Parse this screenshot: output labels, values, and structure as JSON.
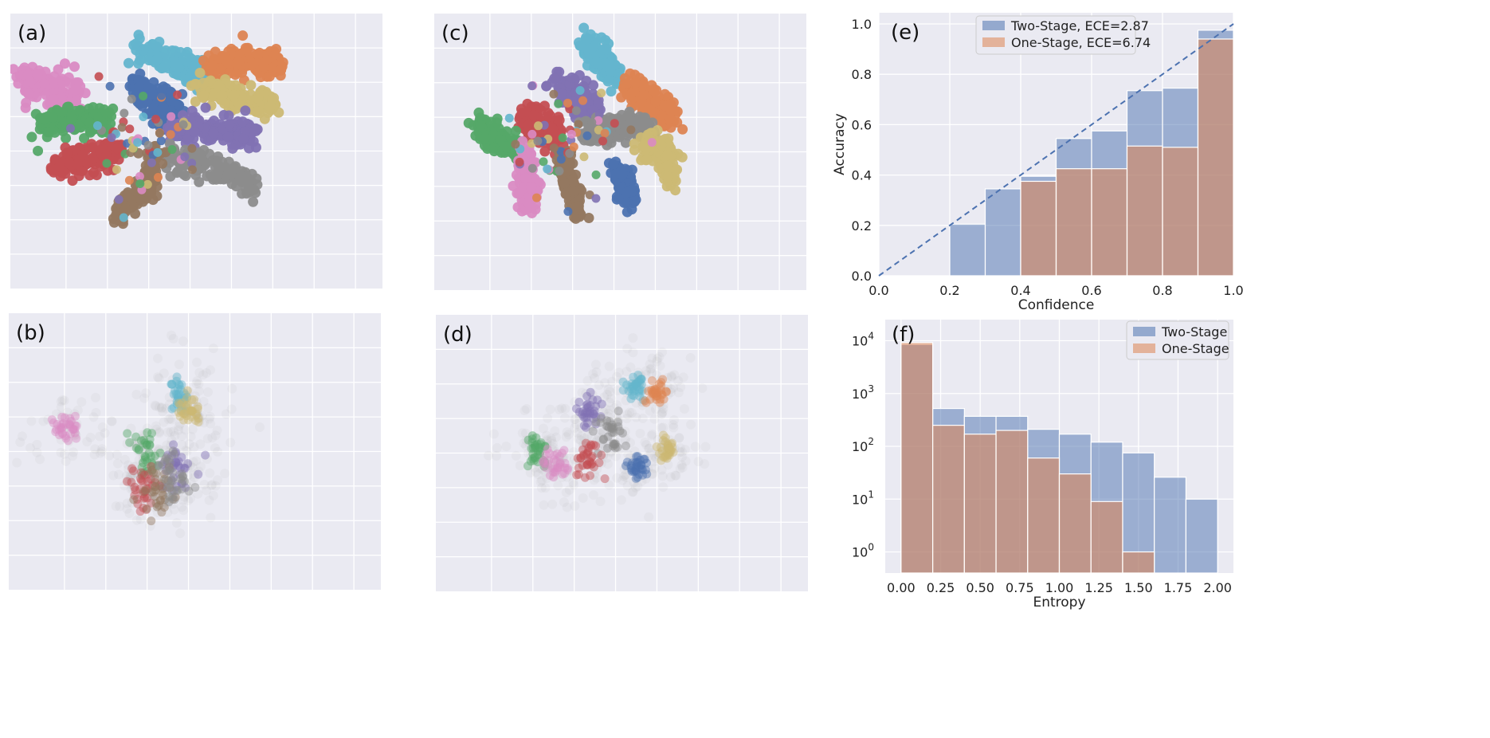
{
  "colors": {
    "blue": "#4c72b0",
    "orange": "#dd8452",
    "green": "#55a868",
    "red": "#c44e52",
    "purple": "#8172b3",
    "brown": "#937860",
    "pink": "#da8bc3",
    "gray": "#8c8c8c",
    "olive": "#ccb974",
    "cyan": "#64b5cd",
    "background": "#eaeaf2",
    "grid": "#ffffff"
  },
  "chart_data": [
    {
      "id": "a",
      "panel_label": "(a)",
      "type": "scatter",
      "description_clusters": [
        {
          "color": "cyan",
          "path": [
            [
              -0.7,
              0.92
            ],
            [
              -0.2,
              0.75
            ],
            [
              0.1,
              0.65
            ]
          ],
          "spread": 0.05
        },
        {
          "color": "orange",
          "path": [
            [
              0.15,
              0.72
            ],
            [
              0.55,
              0.78
            ],
            [
              0.95,
              0.75
            ]
          ],
          "spread": 0.045
        },
        {
          "color": "pink",
          "path": [
            [
              -1.95,
              0.62
            ],
            [
              -1.7,
              0.55
            ],
            [
              -1.35,
              0.48
            ]
          ],
          "spread": 0.06
        },
        {
          "color": "blue",
          "path": [
            [
              -0.7,
              0.55
            ],
            [
              -0.45,
              0.45
            ],
            [
              -0.25,
              0.35
            ]
          ],
          "spread": 0.06
        },
        {
          "color": "olive",
          "path": [
            [
              0.0,
              0.55
            ],
            [
              0.45,
              0.45
            ],
            [
              0.85,
              0.4
            ]
          ],
          "spread": 0.045
        },
        {
          "color": "green",
          "path": [
            [
              -1.75,
              0.22
            ],
            [
              -1.35,
              0.26
            ],
            [
              -0.95,
              0.3
            ]
          ],
          "spread": 0.045
        },
        {
          "color": "purple",
          "path": [
            [
              -0.3,
              0.2
            ],
            [
              0.15,
              0.18
            ],
            [
              0.65,
              0.15
            ]
          ],
          "spread": 0.045
        },
        {
          "color": "red",
          "path": [
            [
              -1.6,
              -0.15
            ],
            [
              -1.2,
              -0.08
            ],
            [
              -0.85,
              0.0
            ]
          ],
          "spread": 0.045
        },
        {
          "color": "gray",
          "path": [
            [
              -0.35,
              -0.05
            ],
            [
              0.2,
              -0.15
            ],
            [
              0.65,
              -0.3
            ]
          ],
          "spread": 0.045
        },
        {
          "color": "brown",
          "path": [
            [
              -0.45,
              0.0
            ],
            [
              -0.55,
              -0.3
            ],
            [
              -0.9,
              -0.55
            ]
          ],
          "spread": 0.045
        }
      ]
    },
    {
      "id": "b",
      "panel_label": "(b)",
      "type": "scatter",
      "description_clusters": [
        {
          "color": "pink",
          "path": [
            [
              -1.6,
              0.2
            ],
            [
              -1.3,
              0.22
            ]
          ],
          "spread": 0.04
        },
        {
          "color": "cyan",
          "path": [
            [
              -0.2,
              0.55
            ],
            [
              -0.15,
              0.4
            ]
          ],
          "spread": 0.05
        },
        {
          "color": "olive",
          "path": [
            [
              -0.1,
              0.35
            ],
            [
              0.0,
              0.3
            ]
          ],
          "spread": 0.06
        },
        {
          "color": "green",
          "path": [
            [
              -0.6,
              0.05
            ],
            [
              -0.5,
              -0.05
            ]
          ],
          "spread": 0.07
        },
        {
          "color": "purple",
          "path": [
            [
              -0.25,
              -0.1
            ],
            [
              -0.15,
              -0.2
            ]
          ],
          "spread": 0.08
        },
        {
          "color": "red",
          "path": [
            [
              -0.6,
              -0.25
            ],
            [
              -0.55,
              -0.35
            ]
          ],
          "spread": 0.08
        },
        {
          "color": "brown",
          "path": [
            [
              -0.45,
              -0.3
            ],
            [
              -0.35,
              -0.4
            ]
          ],
          "spread": 0.08
        },
        {
          "color": "gray",
          "path": [
            [
              -0.3,
              -0.15
            ],
            [
              -0.2,
              -0.3
            ]
          ],
          "spread": 0.08
        }
      ]
    },
    {
      "id": "c",
      "panel_label": "(c)",
      "type": "scatter",
      "description_clusters": [
        {
          "color": "cyan",
          "path": [
            [
              -0.4,
              0.95
            ],
            [
              -0.2,
              0.8
            ],
            [
              -0.05,
              0.65
            ]
          ],
          "spread": 0.045
        },
        {
          "color": "orange",
          "path": [
            [
              0.05,
              0.55
            ],
            [
              0.35,
              0.45
            ],
            [
              0.6,
              0.3
            ]
          ],
          "spread": 0.045
        },
        {
          "color": "purple",
          "path": [
            [
              -0.7,
              0.55
            ],
            [
              -0.45,
              0.45
            ],
            [
              -0.3,
              0.35
            ]
          ],
          "spread": 0.05
        },
        {
          "color": "red",
          "path": [
            [
              -1.1,
              0.3
            ],
            [
              -0.9,
              0.22
            ],
            [
              -0.7,
              0.15
            ]
          ],
          "spread": 0.05
        },
        {
          "color": "gray",
          "path": [
            [
              -0.45,
              0.18
            ],
            [
              0.0,
              0.2
            ],
            [
              0.35,
              0.22
            ]
          ],
          "spread": 0.04
        },
        {
          "color": "green",
          "path": [
            [
              -1.6,
              0.2
            ],
            [
              -1.35,
              0.1
            ],
            [
              -1.1,
              0.05
            ]
          ],
          "spread": 0.045
        },
        {
          "color": "olive",
          "path": [
            [
              0.25,
              0.05
            ],
            [
              0.5,
              0.0
            ],
            [
              0.6,
              -0.2
            ]
          ],
          "spread": 0.05
        },
        {
          "color": "pink",
          "path": [
            [
              -1.05,
              -0.05
            ],
            [
              -1.05,
              -0.25
            ],
            [
              -1.05,
              -0.5
            ]
          ],
          "spread": 0.05
        },
        {
          "color": "brown",
          "path": [
            [
              -0.65,
              -0.05
            ],
            [
              -0.55,
              -0.3
            ],
            [
              -0.45,
              -0.55
            ]
          ],
          "spread": 0.04
        },
        {
          "color": "blue",
          "path": [
            [
              -0.05,
              -0.15
            ],
            [
              0.05,
              -0.3
            ],
            [
              0.1,
              -0.4
            ]
          ],
          "spread": 0.045
        }
      ]
    },
    {
      "id": "d",
      "panel_label": "(d)",
      "type": "scatter",
      "description_clusters": [
        {
          "color": "cyan",
          "path": [
            [
              0.1,
              0.55
            ],
            [
              0.2,
              0.6
            ]
          ],
          "spread": 0.04
        },
        {
          "color": "orange",
          "path": [
            [
              0.3,
              0.5
            ],
            [
              0.45,
              0.55
            ]
          ],
          "spread": 0.04
        },
        {
          "color": "purple",
          "path": [
            [
              -0.4,
              0.4
            ],
            [
              -0.3,
              0.3
            ]
          ],
          "spread": 0.06
        },
        {
          "color": "gray",
          "path": [
            [
              -0.2,
              0.15
            ],
            [
              -0.1,
              0.2
            ]
          ],
          "spread": 0.08
        },
        {
          "color": "red",
          "path": [
            [
              -0.4,
              0.0
            ],
            [
              -0.35,
              -0.1
            ]
          ],
          "spread": 0.07
        },
        {
          "color": "green",
          "path": [
            [
              -1.0,
              0.05
            ],
            [
              -0.9,
              0.0
            ]
          ],
          "spread": 0.05
        },
        {
          "color": "pink",
          "path": [
            [
              -0.85,
              -0.1
            ],
            [
              -0.65,
              -0.12
            ]
          ],
          "spread": 0.04
        },
        {
          "color": "olive",
          "path": [
            [
              0.45,
              0.0
            ],
            [
              0.55,
              0.05
            ]
          ],
          "spread": 0.04
        },
        {
          "color": "blue",
          "path": [
            [
              0.1,
              -0.15
            ],
            [
              0.25,
              -0.1
            ]
          ],
          "spread": 0.04
        }
      ]
    },
    {
      "id": "e",
      "panel_label": "(e)",
      "type": "bar",
      "xlabel": "Confidence",
      "ylabel": "Accuracy",
      "xlim": [
        0.0,
        1.0
      ],
      "ylim": [
        0.0,
        1.0
      ],
      "xticks": [
        "0.0",
        "0.2",
        "0.4",
        "0.6",
        "0.8",
        "1.0"
      ],
      "yticks": [
        "0.0",
        "0.2",
        "0.4",
        "0.6",
        "0.8",
        "1.0"
      ],
      "bin_edges": [
        0.0,
        0.1,
        0.2,
        0.3,
        0.4,
        0.5,
        0.6,
        0.7,
        0.8,
        0.9,
        1.0
      ],
      "legend_position": "top-center",
      "series": [
        {
          "name": "Two-Stage, ECE=2.87",
          "color": "blue",
          "values": [
            0,
            0,
            0.205,
            0.345,
            0.395,
            0.545,
            0.575,
            0.735,
            0.745,
            0.975
          ]
        },
        {
          "name": "One-Stage, ECE=6.74",
          "color": "orange",
          "values": [
            0,
            0,
            0,
            0,
            0.375,
            0.425,
            0.425,
            0.515,
            0.51,
            0.94
          ]
        }
      ],
      "diagonal": true
    },
    {
      "id": "f",
      "panel_label": "(f)",
      "type": "bar",
      "xlabel": "Entropy",
      "ylabel": "",
      "yscale": "log",
      "ylim_log10": [
        -0.4,
        4.4
      ],
      "xlim": [
        -0.1,
        2.1
      ],
      "xticks": [
        "0.00",
        "0.25",
        "0.50",
        "0.75",
        "1.00",
        "1.25",
        "1.50",
        "1.75",
        "2.00"
      ],
      "yticks_exp": [
        "0",
        "1",
        "2",
        "3",
        "4"
      ],
      "ytick_base": "10",
      "bin_edges": [
        0.0,
        0.2,
        0.4,
        0.6,
        0.8,
        1.0,
        1.2,
        1.4,
        1.6,
        1.8,
        2.0
      ],
      "legend_position": "top-right",
      "series": [
        {
          "name": "Two-Stage",
          "color": "blue",
          "values": [
            8500,
            520,
            370,
            370,
            210,
            170,
            120,
            75,
            26,
            10
          ]
        },
        {
          "name": "One-Stage",
          "color": "orange",
          "values": [
            9200,
            250,
            170,
            200,
            60,
            30,
            9,
            1,
            0,
            0
          ]
        }
      ]
    }
  ]
}
